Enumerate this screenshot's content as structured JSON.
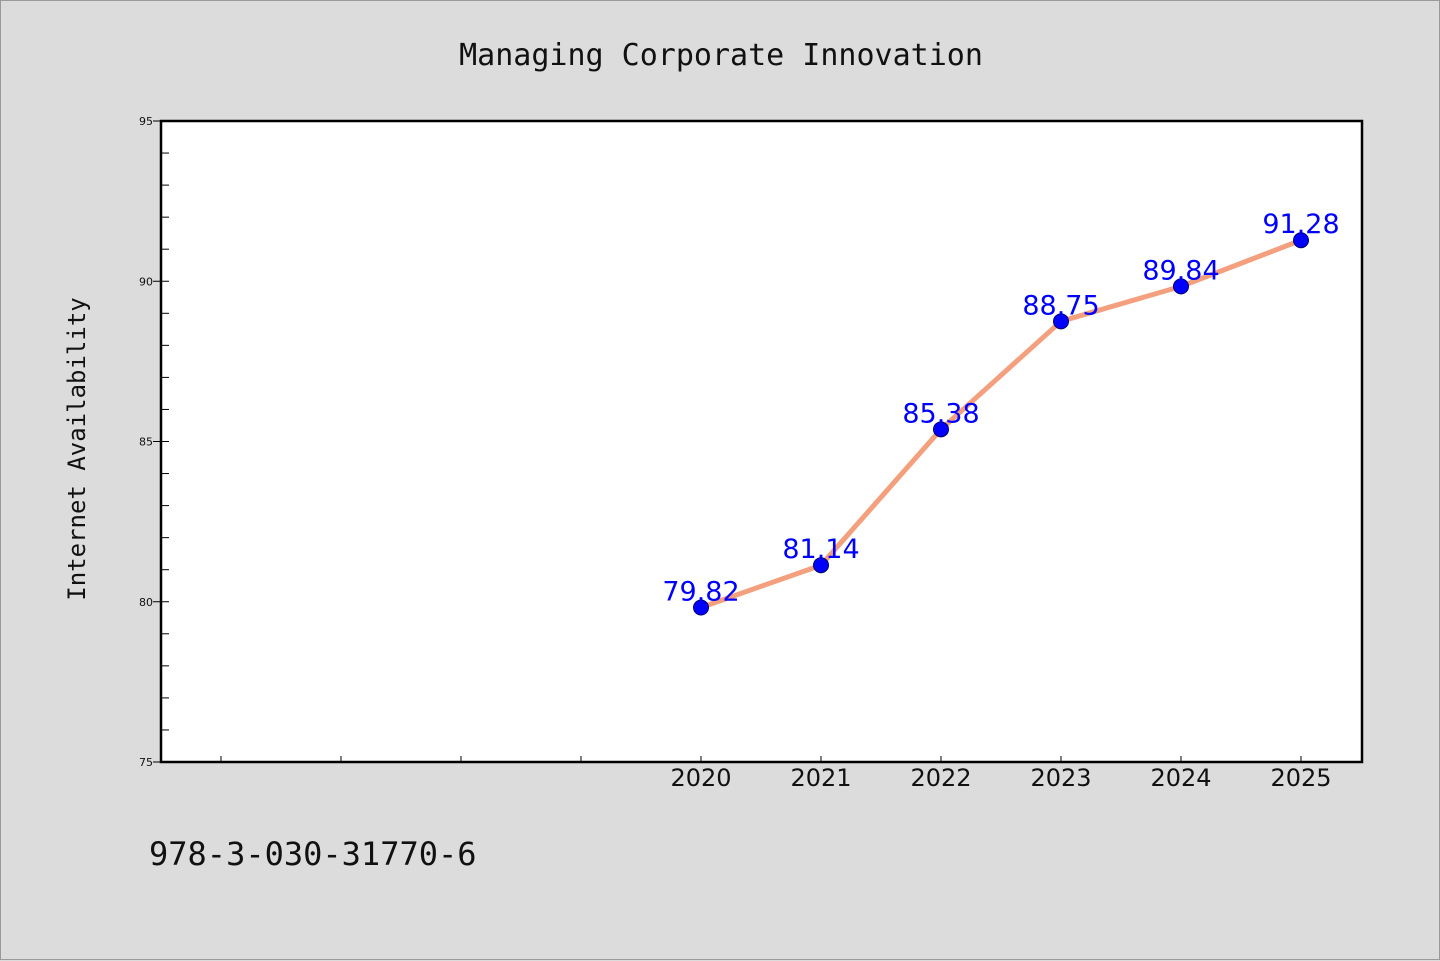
{
  "chart_data": {
    "type": "line",
    "title": "Managing Corporate Innovation",
    "xlabel": "",
    "ylabel": "Internet Availability",
    "x": [
      "2020",
      "2021",
      "2022",
      "2023",
      "2024",
      "2025"
    ],
    "values": [
      79.82,
      81.14,
      85.38,
      88.75,
      89.84,
      91.28
    ],
    "data_labels": [
      "79.82",
      "81.14",
      "85.38",
      "88.75",
      "89.84",
      "91.28"
    ],
    "yticks": [
      "75",
      "80",
      "85",
      "90",
      "95"
    ],
    "ylim": [
      75,
      95
    ],
    "grid": false,
    "legend": "none",
    "colors": {
      "line": "#f4a07e",
      "marker": "#0000ff",
      "label": "#0000ff",
      "background": "#dcdcdc",
      "plot_background": "#ffffff"
    }
  },
  "footer": {
    "isbn": "978-3-030-31770-6"
  }
}
